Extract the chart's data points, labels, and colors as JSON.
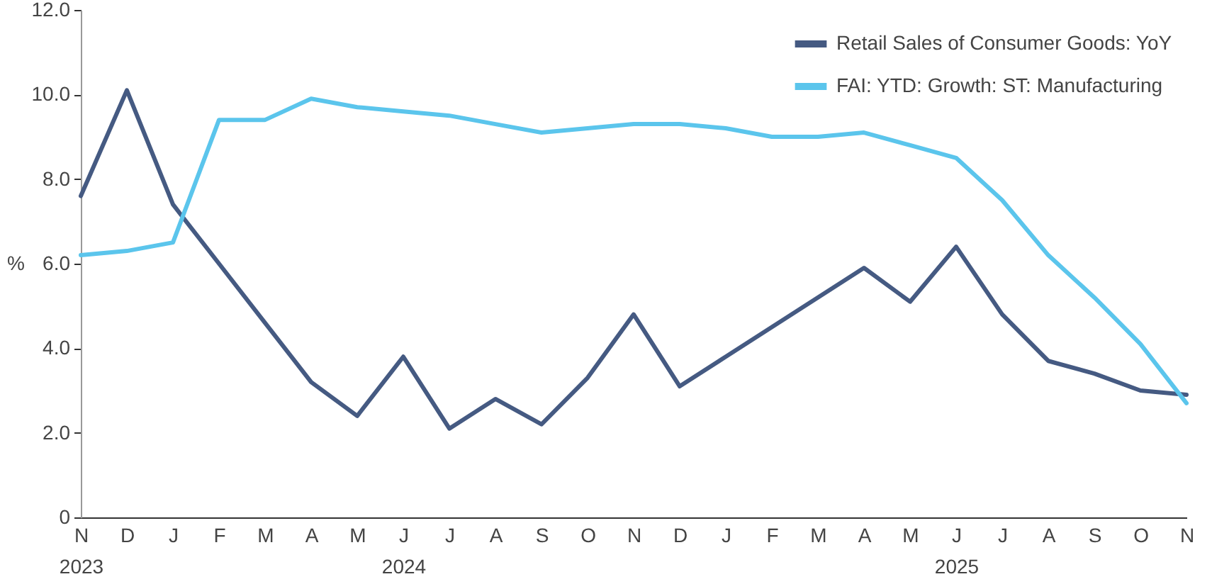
{
  "chart_data": {
    "type": "line",
    "ylabel": "%",
    "categories": [
      "N\n2023",
      "D",
      "J",
      "F",
      "M",
      "A",
      "M",
      "J\n2024",
      "J",
      "A",
      "S",
      "O",
      "N",
      "D",
      "J",
      "F",
      "M",
      "A",
      "M",
      "J\n2025",
      "J",
      "A",
      "S",
      "O",
      "N"
    ],
    "series": [
      {
        "name": "Retail Sales of Consumer Goods: YoY",
        "color": "#455a82",
        "values": [
          7.6,
          10.1,
          7.4,
          6.0,
          4.6,
          3.2,
          2.4,
          3.8,
          2.1,
          2.8,
          2.2,
          3.3,
          4.8,
          3.1,
          3.8,
          4.5,
          5.2,
          5.9,
          5.1,
          6.4,
          4.8,
          3.7,
          3.4,
          3.0,
          2.9
        ]
      },
      {
        "name": "FAI: YTD: Growth: ST: Manufacturing",
        "color": "#5bc5ec",
        "values": [
          6.2,
          6.3,
          6.5,
          9.4,
          9.4,
          9.9,
          9.7,
          9.6,
          9.5,
          9.3,
          9.1,
          9.2,
          9.3,
          9.3,
          9.2,
          9.0,
          9.0,
          9.1,
          8.8,
          8.5,
          7.5,
          6.2,
          5.2,
          4.1,
          2.7
        ]
      }
    ],
    "ylim": [
      0,
      12
    ],
    "yticks": [
      0,
      {
        "value": 2,
        "label": "2.0"
      },
      {
        "value": 4,
        "label": "4.0"
      },
      {
        "value": 6,
        "label": "6.0"
      },
      {
        "value": 8,
        "label": "8.0"
      },
      {
        "value": 10,
        "label": "10.0"
      },
      {
        "value": 12,
        "label": "12.0"
      }
    ],
    "grid": false,
    "legend": "top right"
  }
}
